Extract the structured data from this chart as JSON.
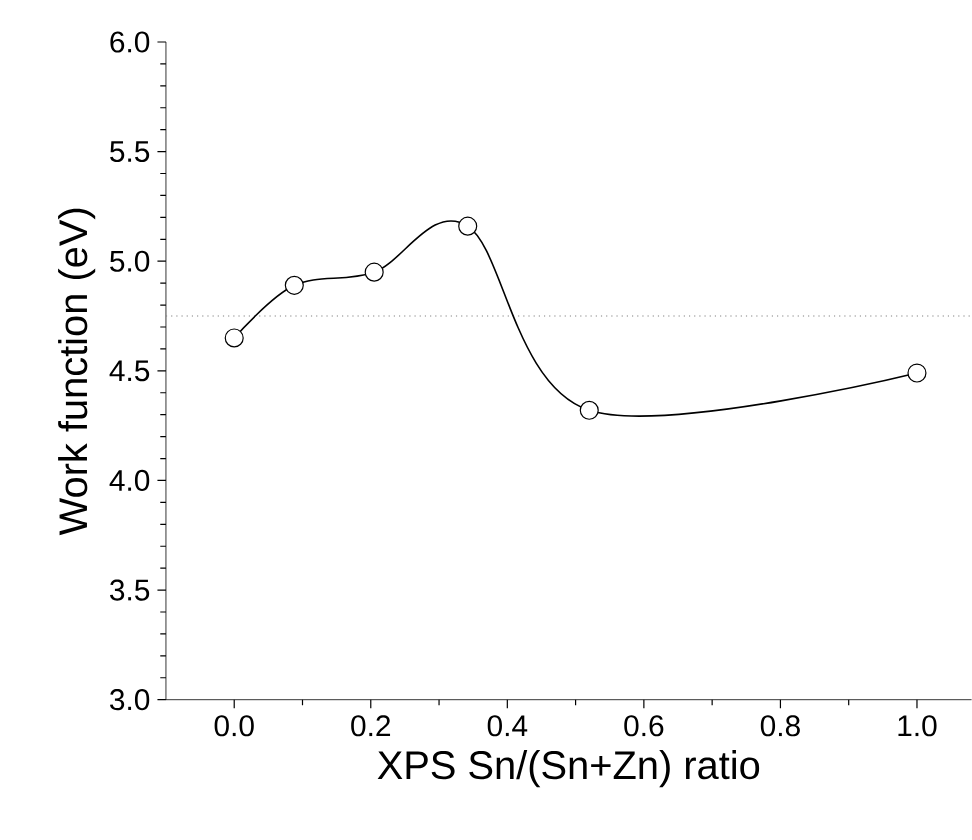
{
  "chart_data": {
    "type": "line",
    "xlabel": "XPS Sn/(Sn+Zn) ratio",
    "ylabel": "Work function (eV)",
    "x": [
      0.0,
      0.088,
      0.205,
      0.342,
      0.52,
      1.0
    ],
    "series": [
      {
        "color": "#000000",
        "values": [
          4.65,
          4.89,
          4.95,
          5.16,
          4.32,
          4.49
        ],
        "errors": [
          0.02,
          0.02,
          0.02,
          0.02,
          0.03,
          0.02
        ]
      }
    ],
    "xlim": [
      -0.1,
      1.08
    ],
    "ylim": [
      3.0,
      6.0
    ],
    "xticks": [
      {
        "value": 0,
        "label": "0.0"
      },
      {
        "value": 0.2,
        "label": "0.2"
      },
      {
        "value": 0.4,
        "label": "0.4"
      },
      {
        "value": 0.6,
        "label": "0.6"
      },
      {
        "value": 0.8,
        "label": "0.8"
      },
      {
        "value": 1,
        "label": "1.0"
      }
    ],
    "yticks": [
      {
        "value": 3,
        "label": "3.0"
      },
      {
        "value": 3.5,
        "label": "3.5"
      },
      {
        "value": 4,
        "label": "4.0"
      },
      {
        "value": 4.5,
        "label": "4.5"
      },
      {
        "value": 5,
        "label": "5.0"
      },
      {
        "value": 5.5,
        "label": "5.5"
      },
      {
        "value": 6,
        "label": "6.0"
      }
    ],
    "ref_lines": [
      {
        "axis": "y",
        "value": 4.75,
        "color": "#808080",
        "line_style": "dotted"
      }
    ],
    "marker": "circle",
    "line_style": "solid"
  }
}
